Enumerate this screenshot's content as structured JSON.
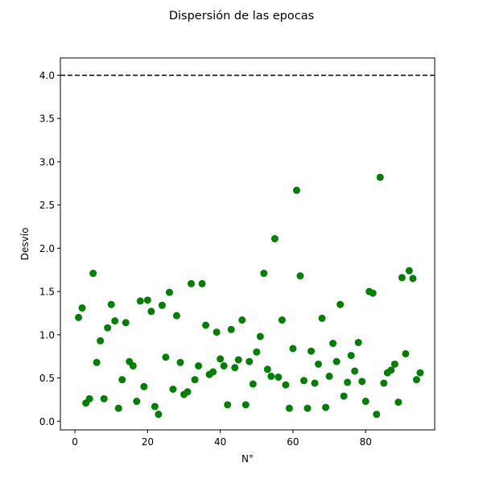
{
  "chart_data": {
    "type": "scatter",
    "title": "Dispersión de las epocas",
    "xlabel": "N°",
    "ylabel": "Desvío",
    "xlim": [
      -4,
      99
    ],
    "ylim": [
      -0.1,
      4.2
    ],
    "xticks": [
      0,
      20,
      40,
      60,
      80
    ],
    "xtick_labels": [
      "0",
      "20",
      "40",
      "60",
      "80"
    ],
    "yticks": [
      0.0,
      0.5,
      1.0,
      1.5,
      2.0,
      2.5,
      3.0,
      3.5,
      4.0
    ],
    "ytick_labels": [
      "0.0",
      "0.5",
      "1.0",
      "1.5",
      "2.0",
      "2.5",
      "3.0",
      "3.5",
      "4.0"
    ],
    "grid": false,
    "point_color": "#008000",
    "reference_line": {
      "y": 4.0,
      "style": "dashed",
      "color": "#000000"
    },
    "points": [
      {
        "x": 1,
        "y": 1.2
      },
      {
        "x": 2,
        "y": 1.31
      },
      {
        "x": 3,
        "y": 0.21
      },
      {
        "x": 4,
        "y": 0.26
      },
      {
        "x": 5,
        "y": 1.71
      },
      {
        "x": 6,
        "y": 0.68
      },
      {
        "x": 7,
        "y": 0.93
      },
      {
        "x": 8,
        "y": 0.26
      },
      {
        "x": 9,
        "y": 1.08
      },
      {
        "x": 10,
        "y": 1.35
      },
      {
        "x": 11,
        "y": 1.16
      },
      {
        "x": 12,
        "y": 0.15
      },
      {
        "x": 13,
        "y": 0.48
      },
      {
        "x": 14,
        "y": 1.14
      },
      {
        "x": 15,
        "y": 0.69
      },
      {
        "x": 16,
        "y": 0.64
      },
      {
        "x": 17,
        "y": 0.23
      },
      {
        "x": 18,
        "y": 1.39
      },
      {
        "x": 19,
        "y": 0.4
      },
      {
        "x": 20,
        "y": 1.4
      },
      {
        "x": 21,
        "y": 1.27
      },
      {
        "x": 22,
        "y": 0.17
      },
      {
        "x": 23,
        "y": 0.08
      },
      {
        "x": 24,
        "y": 1.34
      },
      {
        "x": 25,
        "y": 0.74
      },
      {
        "x": 26,
        "y": 1.49
      },
      {
        "x": 27,
        "y": 0.37
      },
      {
        "x": 28,
        "y": 1.22
      },
      {
        "x": 29,
        "y": 0.68
      },
      {
        "x": 30,
        "y": 0.31
      },
      {
        "x": 31,
        "y": 0.34
      },
      {
        "x": 32,
        "y": 1.59
      },
      {
        "x": 33,
        "y": 0.48
      },
      {
        "x": 34,
        "y": 0.64
      },
      {
        "x": 35,
        "y": 1.59
      },
      {
        "x": 36,
        "y": 1.11
      },
      {
        "x": 37,
        "y": 0.54
      },
      {
        "x": 38,
        "y": 0.57
      },
      {
        "x": 39,
        "y": 1.03
      },
      {
        "x": 40,
        "y": 0.72
      },
      {
        "x": 41,
        "y": 0.64
      },
      {
        "x": 42,
        "y": 0.19
      },
      {
        "x": 43,
        "y": 1.06
      },
      {
        "x": 44,
        "y": 0.62
      },
      {
        "x": 45,
        "y": 0.71
      },
      {
        "x": 46,
        "y": 1.17
      },
      {
        "x": 47,
        "y": 0.19
      },
      {
        "x": 48,
        "y": 0.69
      },
      {
        "x": 49,
        "y": 0.43
      },
      {
        "x": 50,
        "y": 0.8
      },
      {
        "x": 51,
        "y": 0.98
      },
      {
        "x": 52,
        "y": 1.71
      },
      {
        "x": 53,
        "y": 0.6
      },
      {
        "x": 54,
        "y": 0.52
      },
      {
        "x": 55,
        "y": 2.11
      },
      {
        "x": 56,
        "y": 0.51
      },
      {
        "x": 57,
        "y": 1.17
      },
      {
        "x": 58,
        "y": 0.42
      },
      {
        "x": 59,
        "y": 0.15
      },
      {
        "x": 60,
        "y": 0.84
      },
      {
        "x": 61,
        "y": 2.67
      },
      {
        "x": 62,
        "y": 1.68
      },
      {
        "x": 63,
        "y": 0.47
      },
      {
        "x": 64,
        "y": 0.15
      },
      {
        "x": 65,
        "y": 0.81
      },
      {
        "x": 66,
        "y": 0.44
      },
      {
        "x": 67,
        "y": 0.66
      },
      {
        "x": 68,
        "y": 1.19
      },
      {
        "x": 69,
        "y": 0.16
      },
      {
        "x": 70,
        "y": 0.52
      },
      {
        "x": 71,
        "y": 0.9
      },
      {
        "x": 72,
        "y": 0.69
      },
      {
        "x": 73,
        "y": 1.35
      },
      {
        "x": 74,
        "y": 0.29
      },
      {
        "x": 75,
        "y": 0.45
      },
      {
        "x": 76,
        "y": 0.76
      },
      {
        "x": 77,
        "y": 0.58
      },
      {
        "x": 78,
        "y": 0.91
      },
      {
        "x": 79,
        "y": 0.46
      },
      {
        "x": 80,
        "y": 0.23
      },
      {
        "x": 81,
        "y": 1.5
      },
      {
        "x": 82,
        "y": 1.48
      },
      {
        "x": 83,
        "y": 0.08
      },
      {
        "x": 84,
        "y": 2.82
      },
      {
        "x": 85,
        "y": 0.44
      },
      {
        "x": 86,
        "y": 0.56
      },
      {
        "x": 87,
        "y": 0.59
      },
      {
        "x": 88,
        "y": 0.66
      },
      {
        "x": 89,
        "y": 0.22
      },
      {
        "x": 90,
        "y": 1.66
      },
      {
        "x": 91,
        "y": 0.78
      },
      {
        "x": 92,
        "y": 1.74
      },
      {
        "x": 93,
        "y": 1.65
      },
      {
        "x": 94,
        "y": 0.48
      },
      {
        "x": 95,
        "y": 0.56
      }
    ]
  }
}
